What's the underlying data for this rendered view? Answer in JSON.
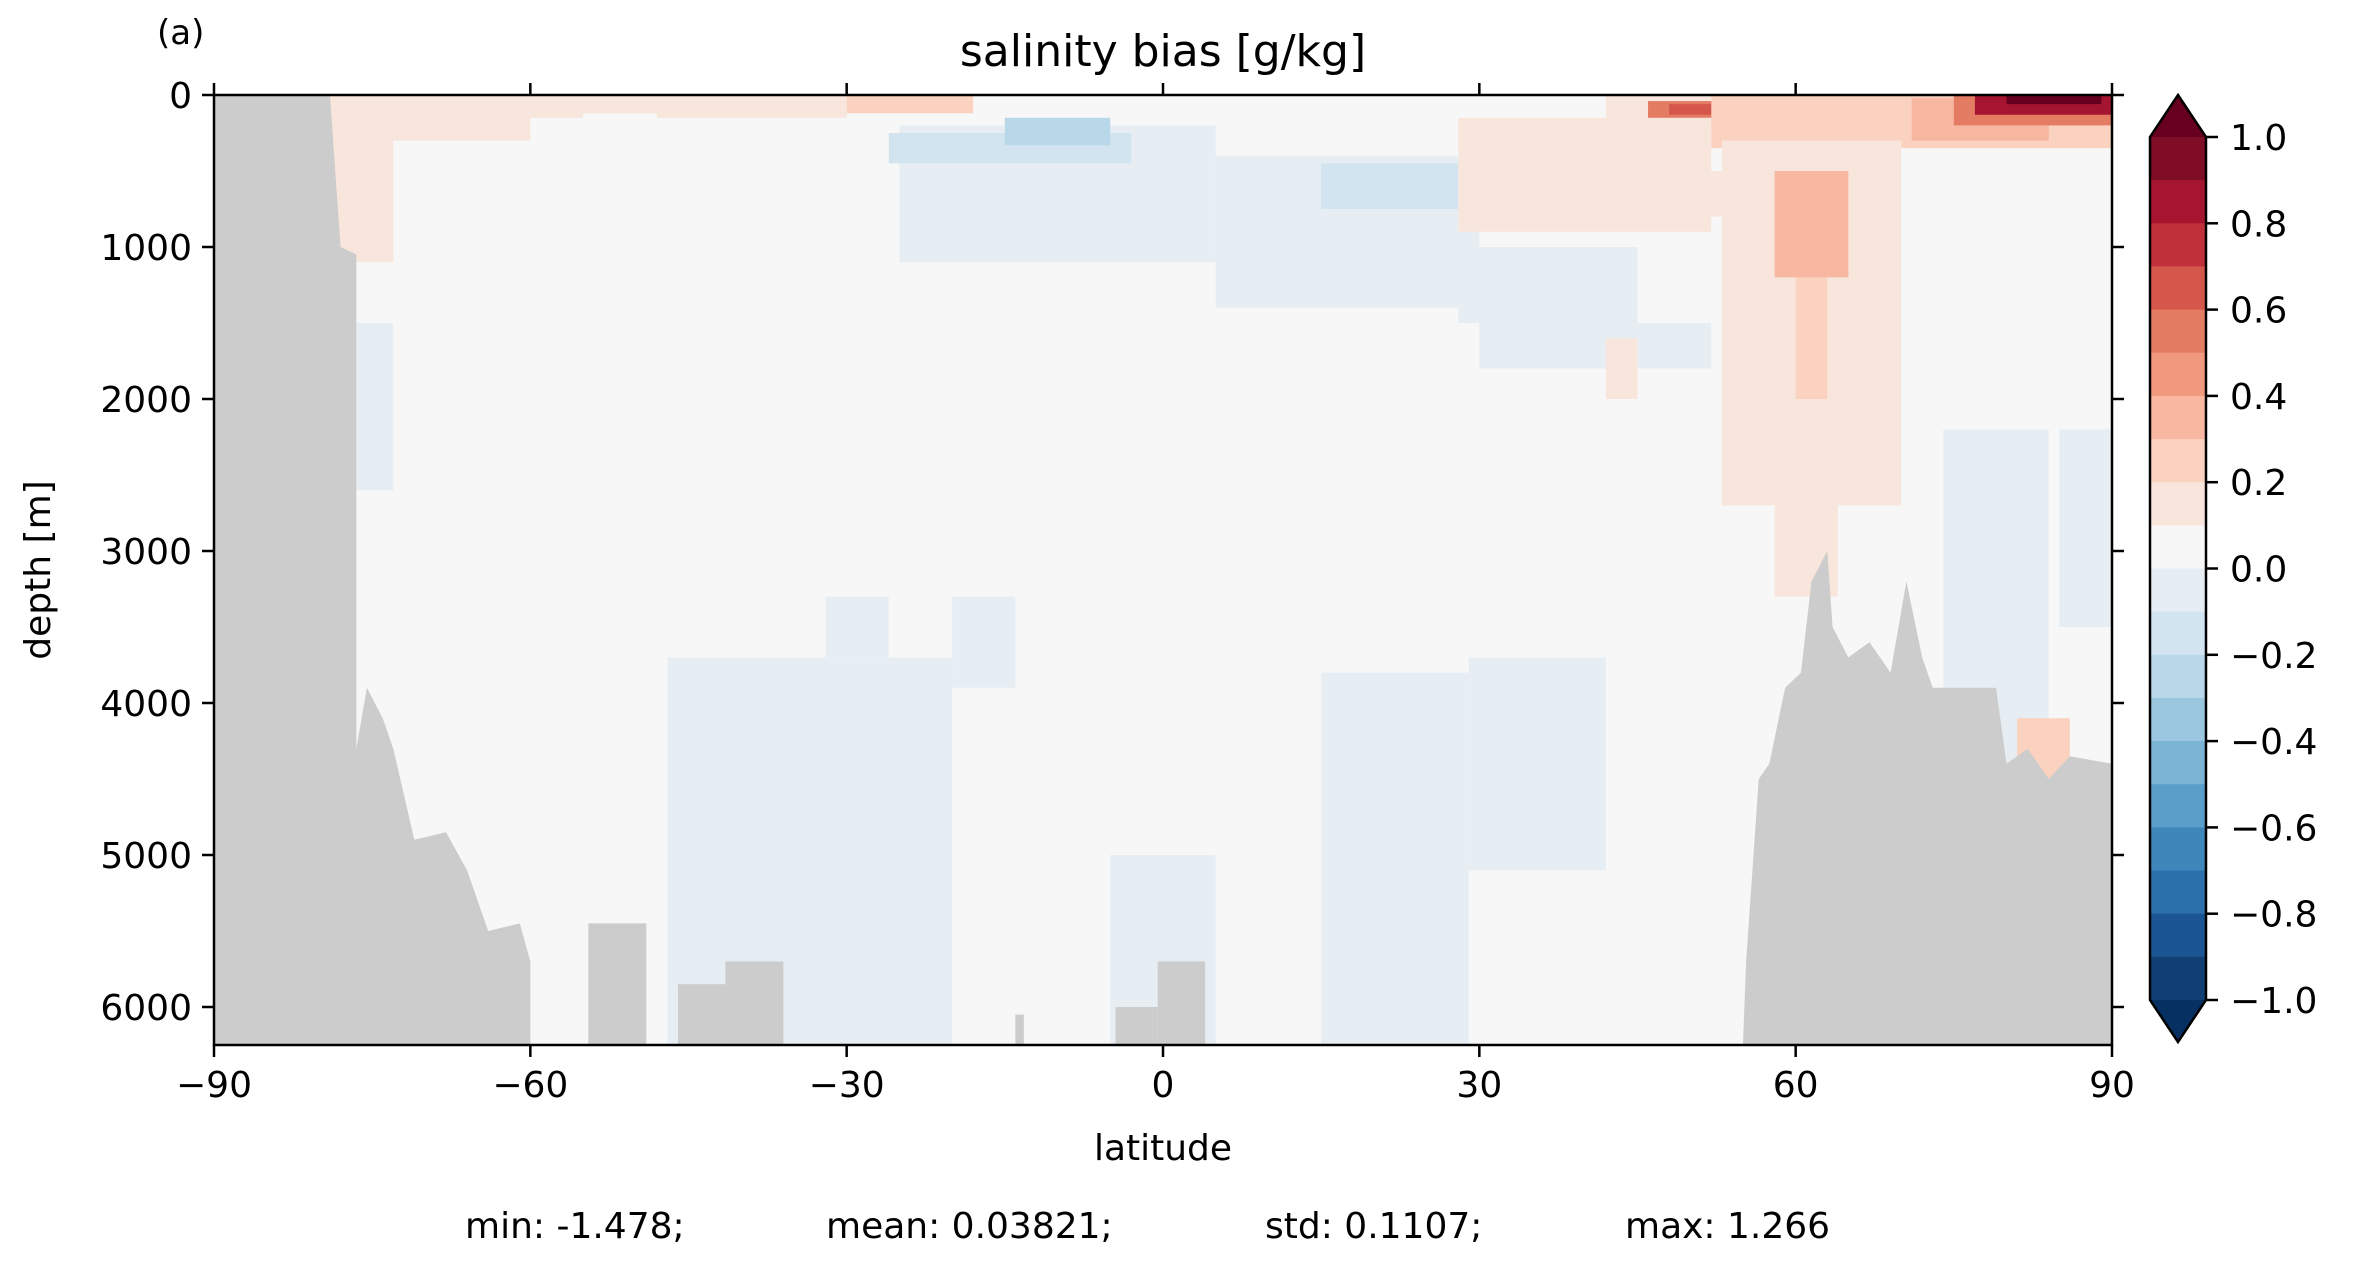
{
  "panel_label": "(a)",
  "chart_data": {
    "type": "heatmap",
    "title": "salinity bias [g/kg]",
    "xlabel": "latitude",
    "ylabel": "depth [m]",
    "xlim": [
      -90,
      90
    ],
    "ylim": [
      6250,
      0
    ],
    "y_inverted": true,
    "x_ticks": [
      -90,
      -60,
      -30,
      0,
      30,
      60,
      90
    ],
    "x_tick_labels": [
      "−90",
      "−60",
      "−30",
      "0",
      "30",
      "60",
      "90"
    ],
    "y_ticks": [
      0,
      1000,
      2000,
      3000,
      4000,
      5000,
      6000
    ],
    "y_tick_labels": [
      "0",
      "1000",
      "2000",
      "3000",
      "4000",
      "5000",
      "6000"
    ],
    "grid": false,
    "land_color": "#cccccc",
    "colorbar": {
      "label": "",
      "vmin": -1.0,
      "vmax": 1.0,
      "extend": "both",
      "ticks": [
        1.0,
        0.8,
        0.6,
        0.4,
        0.2,
        0.0,
        -0.2,
        -0.4,
        -0.6,
        -0.8,
        -1.0
      ],
      "tick_labels": [
        "1.0",
        "0.8",
        "0.6",
        "0.4",
        "0.2",
        "0.0",
        "−0.2",
        "−0.4",
        "−0.6",
        "−0.8",
        "−1.0"
      ],
      "levels_top_to_bottom": [
        "#7f0d25",
        "#a51530",
        "#c0303b",
        "#d5574c",
        "#e47b63",
        "#f0997e",
        "#f8b7a0",
        "#fbd2c0",
        "#f8e6dd",
        "#f7f7f7",
        "#e7eef3",
        "#d1e4ef",
        "#b8d7e8",
        "#9bc6df",
        "#7bb3d4",
        "#5b9ec9",
        "#3f86bb",
        "#2b6fab",
        "#1b5592",
        "#123f73"
      ],
      "over_color": "#67001f",
      "under_color": "#053061"
    },
    "cells": [
      {
        "lat": [
          -79,
          -73
        ],
        "depth": [
          0,
          1100
        ],
        "value": 0.18
      },
      {
        "lat": [
          -77,
          -73
        ],
        "depth": [
          1500,
          2600
        ],
        "value": -0.05
      },
      {
        "lat": [
          -73,
          -60
        ],
        "depth": [
          0,
          300
        ],
        "value": 0.12
      },
      {
        "lat": [
          -60,
          -30
        ],
        "depth": [
          0,
          150
        ],
        "value": 0.12
      },
      {
        "lat": [
          -30,
          -18
        ],
        "depth": [
          0,
          120
        ],
        "value": 0.22
      },
      {
        "lat": [
          -55,
          -48
        ],
        "depth": [
          120,
          450
        ],
        "value": 0.08
      },
      {
        "lat": [
          -25,
          5
        ],
        "depth": [
          200,
          1100
        ],
        "value": -0.05
      },
      {
        "lat": [
          -26,
          -3
        ],
        "depth": [
          250,
          450
        ],
        "value": -0.12
      },
      {
        "lat": [
          -15,
          -5
        ],
        "depth": [
          150,
          330
        ],
        "value": -0.2
      },
      {
        "lat": [
          5,
          30
        ],
        "depth": [
          400,
          1400
        ],
        "value": -0.05
      },
      {
        "lat": [
          15,
          28
        ],
        "depth": [
          450,
          750
        ],
        "value": -0.12
      },
      {
        "lat": [
          28,
          45
        ],
        "depth": [
          1000,
          1500
        ],
        "value": -0.05
      },
      {
        "lat": [
          30,
          52
        ],
        "depth": [
          1500,
          1800
        ],
        "value": -0.05
      },
      {
        "lat": [
          -47,
          -20
        ],
        "depth": [
          3700,
          6250
        ],
        "value": -0.05
      },
      {
        "lat": [
          -32,
          -26
        ],
        "depth": [
          3300,
          3700
        ],
        "value": -0.05
      },
      {
        "lat": [
          -20,
          -14
        ],
        "depth": [
          3300,
          3900
        ],
        "value": -0.05
      },
      {
        "lat": [
          -5,
          5
        ],
        "depth": [
          5000,
          6250
        ],
        "value": -0.05
      },
      {
        "lat": [
          15,
          29
        ],
        "depth": [
          3800,
          6250
        ],
        "value": -0.05
      },
      {
        "lat": [
          29,
          42
        ],
        "depth": [
          3700,
          5100
        ],
        "value": -0.05
      },
      {
        "lat": [
          74,
          84
        ],
        "depth": [
          2200,
          4500
        ],
        "value": -0.05
      },
      {
        "lat": [
          85,
          90
        ],
        "depth": [
          2200,
          3500
        ],
        "value": -0.05
      },
      {
        "lat": [
          28,
          52
        ],
        "depth": [
          150,
          900
        ],
        "value": 0.12
      },
      {
        "lat": [
          42,
          52
        ],
        "depth": [
          0,
          200
        ],
        "value": 0.2
      },
      {
        "lat": [
          46,
          54
        ],
        "depth": [
          40,
          150
        ],
        "value": 0.55
      },
      {
        "lat": [
          48,
          52
        ],
        "depth": [
          60,
          130
        ],
        "value": 0.65
      },
      {
        "lat": [
          52,
          90
        ],
        "depth": [
          0,
          350
        ],
        "value": 0.22
      },
      {
        "lat": [
          53,
          70
        ],
        "depth": [
          300,
          2700
        ],
        "value": 0.2
      },
      {
        "lat": [
          58,
          64
        ],
        "depth": [
          2700,
          3300
        ],
        "value": 0.2
      },
      {
        "lat": [
          58,
          65
        ],
        "depth": [
          500,
          1200
        ],
        "value": 0.32
      },
      {
        "lat": [
          60,
          63
        ],
        "depth": [
          1200,
          2000
        ],
        "value": 0.3
      },
      {
        "lat": [
          71,
          84
        ],
        "depth": [
          20,
          300
        ],
        "value": 0.32
      },
      {
        "lat": [
          75,
          90
        ],
        "depth": [
          0,
          200
        ],
        "value": 0.55
      },
      {
        "lat": [
          77,
          90
        ],
        "depth": [
          0,
          130
        ],
        "value": 0.8
      },
      {
        "lat": [
          80,
          89
        ],
        "depth": [
          0,
          60
        ],
        "value": 1.1
      },
      {
        "lat": [
          42,
          45
        ],
        "depth": [
          1600,
          2000
        ],
        "value": 0.2
      },
      {
        "lat": [
          50,
          53
        ],
        "depth": [
          500,
          800
        ],
        "value": 0.2
      },
      {
        "lat": [
          81,
          86
        ],
        "depth": [
          4100,
          4500
        ],
        "value": 0.3
      }
    ],
    "land_profile": [
      {
        "lat": -90,
        "depth": 0
      },
      {
        "lat": -79,
        "depth": 0
      },
      {
        "lat": -78,
        "depth": 1000
      },
      {
        "lat": -76.5,
        "depth": 1050
      },
      {
        "lat": -76.5,
        "depth": 3400
      },
      {
        "lat": -76.5,
        "depth": 4300
      },
      {
        "lat": -75.5,
        "depth": 3900
      },
      {
        "lat": -74,
        "depth": 4100
      },
      {
        "lat": -73,
        "depth": 4300
      },
      {
        "lat": -72,
        "depth": 4600
      },
      {
        "lat": -71,
        "depth": 4900
      },
      {
        "lat": -68,
        "depth": 4850
      },
      {
        "lat": -66,
        "depth": 5100
      },
      {
        "lat": -64,
        "depth": 5500
      },
      {
        "lat": -61,
        "depth": 5450
      },
      {
        "lat": -60,
        "depth": 5700
      },
      {
        "lat": -60,
        "depth": 6250
      },
      {
        "lat": -90,
        "depth": 6250
      }
    ],
    "land_blocks": [
      {
        "lat": [
          -54.5,
          -49
        ],
        "depth": [
          5450,
          6250
        ]
      },
      {
        "lat": [
          -46,
          -41.5
        ],
        "depth": [
          5850,
          6250
        ]
      },
      {
        "lat": [
          -41.5,
          -36
        ],
        "depth": [
          5700,
          6250
        ]
      },
      {
        "lat": [
          -14,
          -13.2
        ],
        "depth": [
          6050,
          6250
        ]
      },
      {
        "lat": [
          -4.5,
          -0.5
        ],
        "depth": [
          6000,
          6250
        ]
      },
      {
        "lat": [
          -0.5,
          4
        ],
        "depth": [
          5700,
          6250
        ]
      }
    ],
    "land_profile_right": [
      {
        "lat": 55,
        "depth": 6250
      },
      {
        "lat": 55.3,
        "depth": 5700
      },
      {
        "lat": 56.5,
        "depth": 4500
      },
      {
        "lat": 57.5,
        "depth": 4400
      },
      {
        "lat": 59,
        "depth": 3900
      },
      {
        "lat": 60.5,
        "depth": 3800
      },
      {
        "lat": 61.5,
        "depth": 3200
      },
      {
        "lat": 63,
        "depth": 3000
      },
      {
        "lat": 63.5,
        "depth": 3500
      },
      {
        "lat": 65,
        "depth": 3700
      },
      {
        "lat": 67,
        "depth": 3600
      },
      {
        "lat": 69,
        "depth": 3800
      },
      {
        "lat": 70.5,
        "depth": 3200
      },
      {
        "lat": 72,
        "depth": 3700
      },
      {
        "lat": 73,
        "depth": 3900
      },
      {
        "lat": 79,
        "depth": 3900
      },
      {
        "lat": 80,
        "depth": 4400
      },
      {
        "lat": 82,
        "depth": 4300
      },
      {
        "lat": 84,
        "depth": 4500
      },
      {
        "lat": 86,
        "depth": 4350
      },
      {
        "lat": 90,
        "depth": 4400
      },
      {
        "lat": 90,
        "depth": 6250
      }
    ],
    "stats": [
      {
        "label": "min:",
        "value": "-1.478;"
      },
      {
        "label": "mean:",
        "value": "0.03821;"
      },
      {
        "label": "std:",
        "value": "0.1107;"
      },
      {
        "label": "max:",
        "value": "1.266"
      }
    ]
  }
}
